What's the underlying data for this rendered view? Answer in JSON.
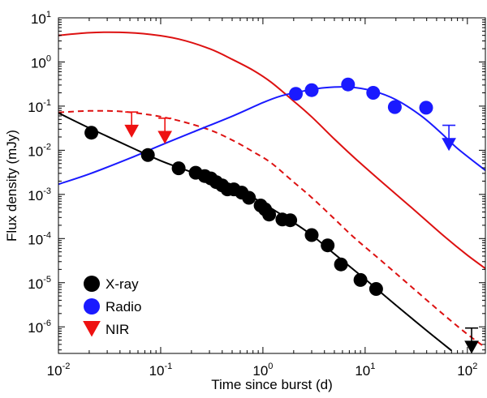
{
  "chart_data": {
    "type": "scatter",
    "title": "",
    "xlabel": "Time since burst  (d)",
    "ylabel": "Flux density  (mJy)",
    "xscale": "log",
    "yscale": "log",
    "xlim": [
      0.01,
      150
    ],
    "ylim": [
      2.5e-07,
      10
    ],
    "x_ticks": [
      {
        "base": "10",
        "exp": "-2",
        "value": 0.01
      },
      {
        "base": "10",
        "exp": "-1",
        "value": 0.1
      },
      {
        "base": "10",
        "exp": "0",
        "value": 1
      },
      {
        "base": "10",
        "exp": "1",
        "value": 10
      },
      {
        "base": "10",
        "exp": "2",
        "value": 100
      }
    ],
    "y_ticks": [
      {
        "base": "10",
        "exp": "-6",
        "value": 1e-06
      },
      {
        "base": "10",
        "exp": "-5",
        "value": 1e-05
      },
      {
        "base": "10",
        "exp": "-4",
        "value": 0.0001
      },
      {
        "base": "10",
        "exp": "-3",
        "value": 0.001
      },
      {
        "base": "10",
        "exp": "-2",
        "value": 0.01
      },
      {
        "base": "10",
        "exp": "-1",
        "value": 0.1
      },
      {
        "base": "10",
        "exp": "0",
        "value": 1
      },
      {
        "base": "10",
        "exp": "1",
        "value": 10
      }
    ],
    "legend": {
      "placement": "bottom-left",
      "entries": [
        {
          "label": "X-ray",
          "color": "#000000",
          "marker": "circle"
        },
        {
          "label": "Radio",
          "color": "#1a1aff",
          "marker": "circle"
        },
        {
          "label": "NIR",
          "color": "#ee1111",
          "marker": "triangle-down"
        }
      ]
    },
    "series": [
      {
        "name": "X-ray",
        "color": "#000000",
        "marker": "circle",
        "points": [
          {
            "x": 0.021,
            "y": 0.025
          },
          {
            "x": 0.075,
            "y": 0.0078
          },
          {
            "x": 0.15,
            "y": 0.0039
          },
          {
            "x": 0.22,
            "y": 0.0031
          },
          {
            "x": 0.27,
            "y": 0.0026
          },
          {
            "x": 0.31,
            "y": 0.0023
          },
          {
            "x": 0.35,
            "y": 0.0019
          },
          {
            "x": 0.4,
            "y": 0.0016
          },
          {
            "x": 0.45,
            "y": 0.0013
          },
          {
            "x": 0.52,
            "y": 0.0013
          },
          {
            "x": 0.62,
            "y": 0.0011
          },
          {
            "x": 0.73,
            "y": 0.00084
          },
          {
            "x": 0.95,
            "y": 0.00056
          },
          {
            "x": 1.05,
            "y": 0.00046
          },
          {
            "x": 1.15,
            "y": 0.00035
          },
          {
            "x": 1.55,
            "y": 0.00027
          },
          {
            "x": 1.85,
            "y": 0.00026
          },
          {
            "x": 3.0,
            "y": 0.00012
          },
          {
            "x": 4.3,
            "y": 7e-05
          },
          {
            "x": 5.8,
            "y": 2.6e-05
          },
          {
            "x": 9.0,
            "y": 1.15e-05
          },
          {
            "x": 12.8,
            "y": 7.2e-06
          }
        ],
        "upper_limits": [
          {
            "x": 110,
            "y": 3.7e-07
          }
        ]
      },
      {
        "name": "Radio",
        "color": "#1a1aff",
        "marker": "circle",
        "points": [
          {
            "x": 2.1,
            "y": 0.19
          },
          {
            "x": 3.0,
            "y": 0.23
          },
          {
            "x": 6.8,
            "y": 0.31
          },
          {
            "x": 12.0,
            "y": 0.2
          },
          {
            "x": 19.5,
            "y": 0.095
          },
          {
            "x": 39.5,
            "y": 0.092
          }
        ],
        "upper_limits": [
          {
            "x": 66,
            "y": 0.0145
          }
        ]
      },
      {
        "name": "NIR",
        "color": "#ee1111",
        "marker": "triangle-down",
        "points": [],
        "upper_limits": [
          {
            "x": 0.052,
            "y": 0.029
          },
          {
            "x": 0.11,
            "y": 0.021
          }
        ]
      }
    ],
    "model_curves": [
      {
        "name": "red solid",
        "color": "#dd1111",
        "style": "solid",
        "x": [
          0.01,
          0.02,
          0.04,
          0.08,
          0.15,
          0.3,
          0.5,
          0.8,
          1.2,
          2,
          3,
          5,
          8,
          15,
          30,
          60,
          100,
          150
        ],
        "y": [
          4.0,
          4.6,
          4.7,
          4.2,
          3.3,
          2.0,
          1.15,
          0.65,
          0.35,
          0.13,
          0.057,
          0.018,
          0.0065,
          0.0018,
          0.00045,
          0.00011,
          4.2e-05,
          2.1e-05
        ]
      },
      {
        "name": "red dashed",
        "color": "#dd1111",
        "style": "dashed",
        "x": [
          0.01,
          0.02,
          0.04,
          0.08,
          0.15,
          0.3,
          0.5,
          0.8,
          1.2,
          2,
          3,
          5,
          8,
          15,
          30,
          60,
          100,
          150
        ],
        "y": [
          0.072,
          0.078,
          0.076,
          0.063,
          0.047,
          0.029,
          0.017,
          0.0093,
          0.0052,
          0.0019,
          0.00085,
          0.00028,
          0.0001,
          2.9e-05,
          7.2e-06,
          1.8e-06,
          6.8e-07,
          3.4e-07
        ]
      },
      {
        "name": "blue solid",
        "color": "#1a1aff",
        "style": "solid",
        "x": [
          0.01,
          0.02,
          0.05,
          0.1,
          0.2,
          0.5,
          1.0,
          1.5,
          2.5,
          4,
          7,
          12,
          20,
          35,
          55,
          80,
          150
        ],
        "y": [
          0.0017,
          0.0029,
          0.0066,
          0.013,
          0.025,
          0.059,
          0.12,
          0.17,
          0.22,
          0.26,
          0.27,
          0.22,
          0.14,
          0.061,
          0.025,
          0.011,
          0.0035
        ]
      },
      {
        "name": "black solid",
        "color": "#000000",
        "style": "solid",
        "x": [
          0.01,
          0.02,
          0.05,
          0.1,
          0.2,
          0.5,
          1.0,
          2,
          3,
          5,
          10,
          20,
          40,
          70
        ],
        "y": [
          0.07,
          0.032,
          0.012,
          0.0058,
          0.0032,
          0.0015,
          0.00063,
          0.00023,
          0.00012,
          4.5e-05,
          1.2e-05,
          3.1e-06,
          8.2e-07,
          2.9e-07
        ]
      }
    ]
  }
}
